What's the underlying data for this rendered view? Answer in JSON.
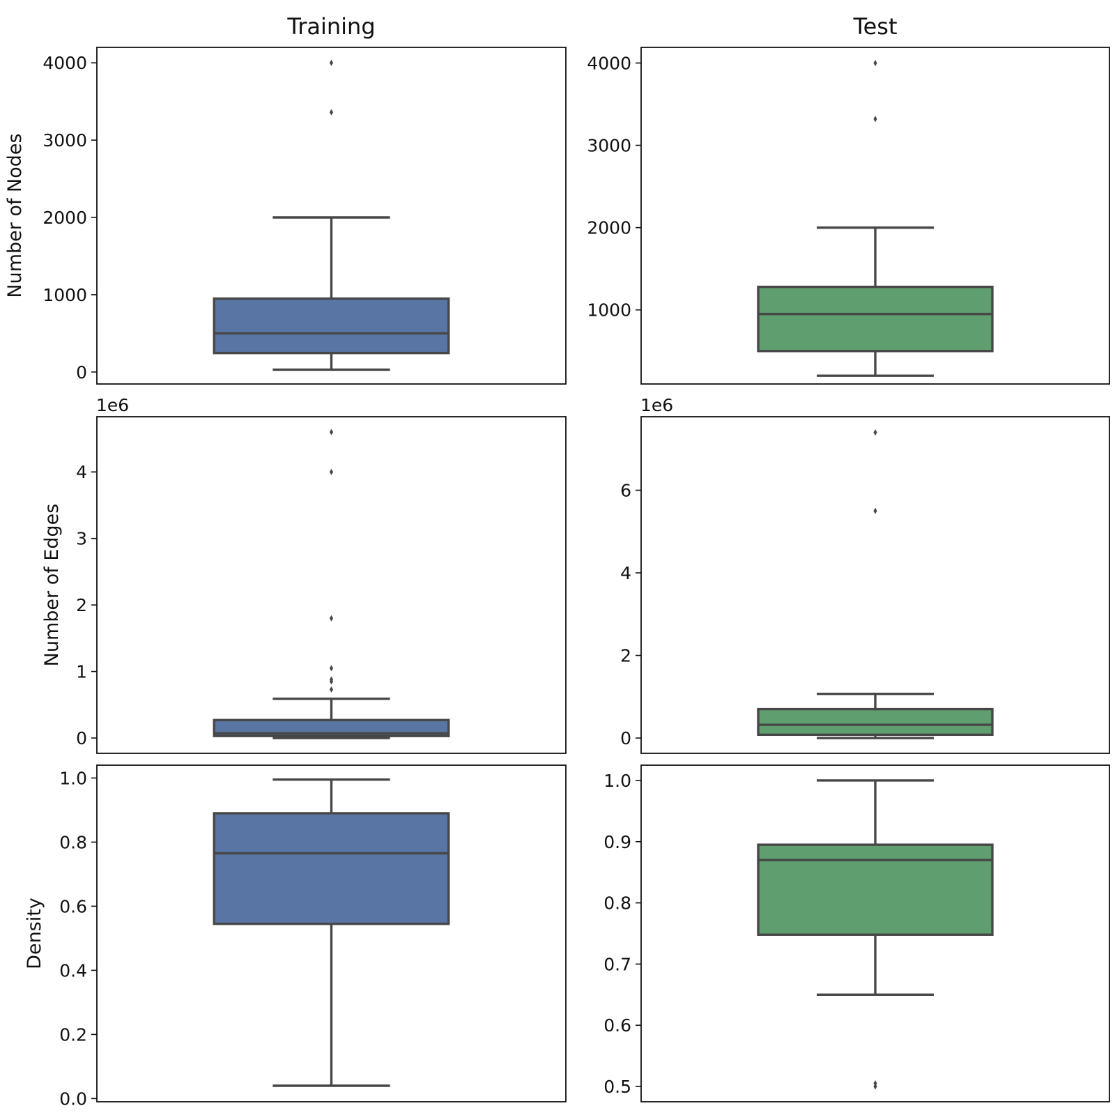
{
  "colors": {
    "training": "#5875a4",
    "test": "#5f9e6e",
    "line": "#474747",
    "frame": "#111111"
  },
  "chart_data": [
    {
      "type": "box",
      "panel": "training-nodes",
      "title": "Training",
      "ylabel": "Number of Nodes",
      "offset_text": "",
      "color_key": "training",
      "ylim": [
        -155,
        4200
      ],
      "yticks": [
        0,
        1000,
        2000,
        3000,
        4000
      ],
      "ytick_labels": [
        "0",
        "1000",
        "2000",
        "3000",
        "4000"
      ],
      "box": {
        "whisker_low": 30,
        "q1": 245,
        "median": 500,
        "q3": 950,
        "whisker_high": 2000
      },
      "outliers": [
        3360,
        4000
      ]
    },
    {
      "type": "box",
      "panel": "test-nodes",
      "title": "Test",
      "ylabel": "",
      "offset_text": "",
      "color_key": "test",
      "ylim": [
        100,
        4190
      ],
      "yticks": [
        1000,
        2000,
        3000,
        4000
      ],
      "ytick_labels": [
        "1000",
        "2000",
        "3000",
        "4000"
      ],
      "box": {
        "whisker_low": 200,
        "q1": 500,
        "median": 950,
        "q3": 1280,
        "whisker_high": 2000
      },
      "outliers": [
        3320,
        4000
      ]
    },
    {
      "type": "box",
      "panel": "training-edges",
      "title": "",
      "ylabel": "Number of Edges",
      "offset_text": "1e6",
      "color_key": "training",
      "ylim": [
        -0.23,
        4.83
      ],
      "yticks": [
        0,
        1,
        2,
        3,
        4
      ],
      "ytick_labels": [
        "0",
        "1",
        "2",
        "3",
        "4"
      ],
      "box": {
        "whisker_low": 0.0,
        "q1": 0.03,
        "median": 0.07,
        "q3": 0.27,
        "whisker_high": 0.59
      },
      "outliers": [
        0.73,
        0.85,
        0.88,
        1.05,
        1.8,
        4.0,
        4.6
      ]
    },
    {
      "type": "box",
      "panel": "test-edges",
      "title": "",
      "ylabel": "",
      "offset_text": "1e6",
      "color_key": "test",
      "ylim": [
        -0.37,
        7.78
      ],
      "yticks": [
        0,
        2,
        4,
        6
      ],
      "ytick_labels": [
        "0",
        "2",
        "4",
        "6"
      ],
      "box": {
        "whisker_low": 0.0,
        "q1": 0.08,
        "median": 0.32,
        "q3": 0.7,
        "whisker_high": 1.07
      },
      "outliers": [
        5.5,
        7.4
      ]
    },
    {
      "type": "box",
      "panel": "training-density",
      "title": "",
      "ylabel": "Density",
      "offset_text": "",
      "color_key": "training",
      "ylim": [
        -0.01,
        1.04
      ],
      "yticks": [
        0.0,
        0.2,
        0.4,
        0.6,
        0.8,
        1.0
      ],
      "ytick_labels": [
        "0.0",
        "0.2",
        "0.4",
        "0.6",
        "0.8",
        "1.0"
      ],
      "box": {
        "whisker_low": 0.04,
        "q1": 0.545,
        "median": 0.765,
        "q3": 0.89,
        "whisker_high": 0.995
      },
      "outliers": []
    },
    {
      "type": "box",
      "panel": "test-density",
      "title": "",
      "ylabel": "",
      "offset_text": "",
      "color_key": "test",
      "ylim": [
        0.475,
        1.025
      ],
      "yticks": [
        0.5,
        0.6,
        0.7,
        0.8,
        0.9,
        1.0
      ],
      "ytick_labels": [
        "0.5",
        "0.6",
        "0.7",
        "0.8",
        "0.9",
        "1.0"
      ],
      "box": {
        "whisker_low": 0.65,
        "q1": 0.748,
        "median": 0.87,
        "q3": 0.895,
        "whisker_high": 1.0
      },
      "outliers": [
        0.5,
        0.505
      ]
    }
  ]
}
